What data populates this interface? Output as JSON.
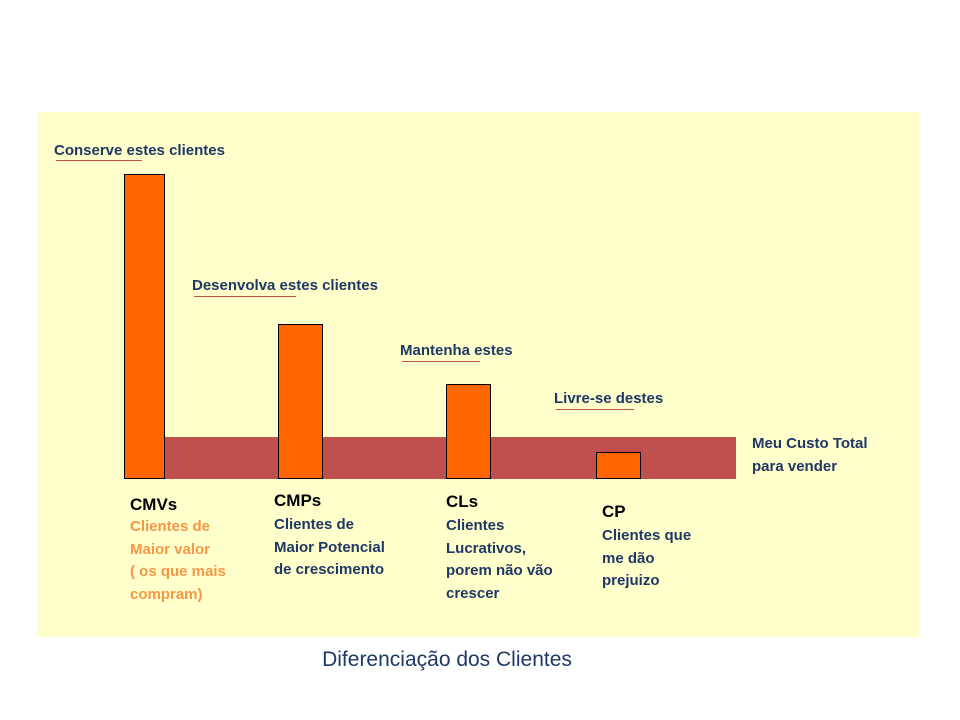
{
  "colors": {
    "panel_bg": "#ffffcc",
    "bar_fill": "#ff6600",
    "cost_band": "#c0504d",
    "text_dark_blue": "#1f3864",
    "highlight_orange": "#f79646"
  },
  "actions": {
    "cmv": "Conserve estes clientes",
    "cmp": "Desenvolva estes clientes",
    "cl": "Mantenha estes",
    "cp": "Livre-se destes"
  },
  "cost_label": {
    "line1": "Meu Custo Total",
    "line2": "para vender"
  },
  "segments": {
    "cmv": {
      "code": "CMVs",
      "lines": [
        "Clientes de",
        "Maior valor",
        "( os que mais",
        "compram)"
      ]
    },
    "cmp": {
      "code": "CMPs",
      "lines": [
        "Clientes de",
        "Maior Potencial",
        "de crescimento"
      ]
    },
    "cl": {
      "code": "CLs",
      "lines": [
        "Clientes",
        "Lucrativos,",
        "porem não vão",
        "crescer"
      ]
    },
    "cp": {
      "code": "CP",
      "lines": [
        "Clientes que",
        "me dão",
        "prejuizo"
      ]
    }
  },
  "caption": "Diferenciação dos Clientes"
}
